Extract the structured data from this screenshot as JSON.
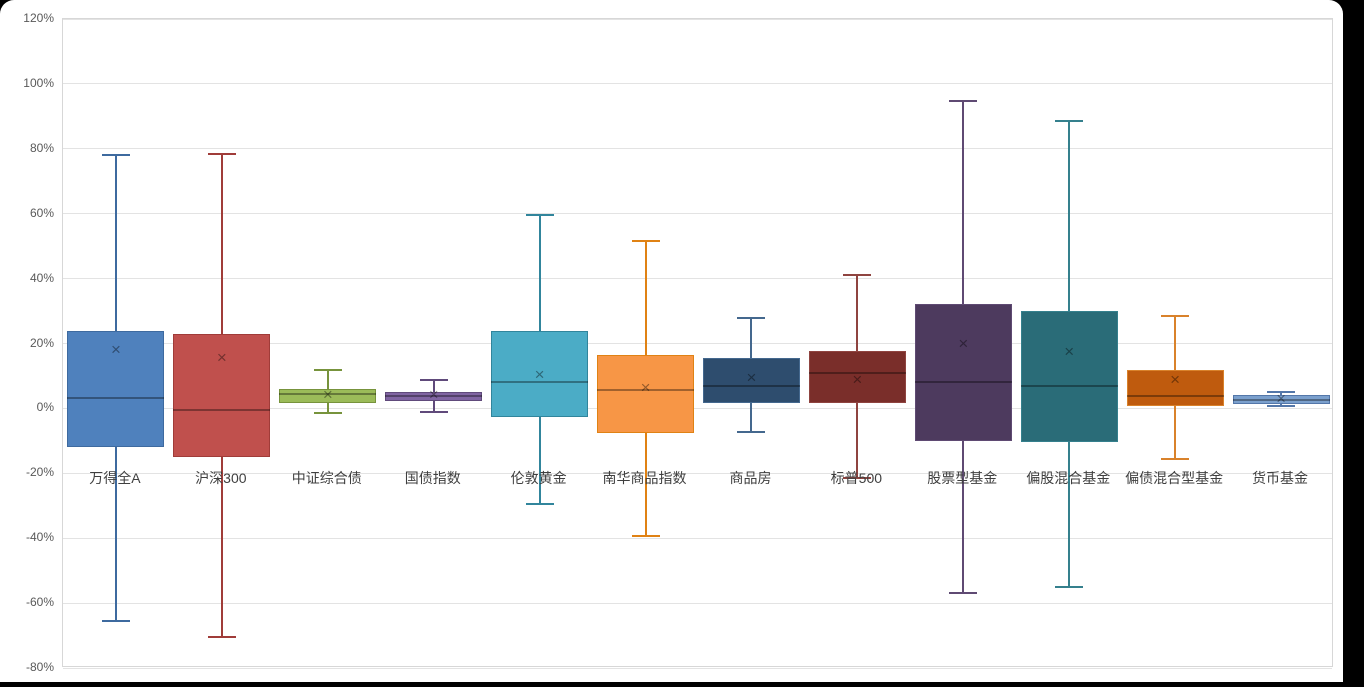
{
  "chart_data": {
    "type": "boxplot",
    "title": "",
    "xlabel": "",
    "ylabel": "",
    "grid": true,
    "legend": false,
    "y_axis": {
      "min": -80,
      "max": 120,
      "step": 20,
      "unit": "%",
      "tick_values": [
        120,
        100,
        80,
        60,
        40,
        20,
        0,
        -20,
        -40,
        -60,
        -80
      ],
      "tick_labels": [
        "120%",
        "100%",
        "80%",
        "60%",
        "40%",
        "20%",
        "0%",
        "-20%",
        "-40%",
        "-60%",
        "-80%"
      ]
    },
    "categories": [
      "万得全A",
      "沪深300",
      "中证综合债",
      "国债指数",
      "伦敦黄金",
      "南华商品指数",
      "商品房",
      "标普500",
      "股票型基金",
      "偏股混合基金",
      "偏债混合型基金",
      "货币基金"
    ],
    "series": [
      {
        "label": "万得全A",
        "whisker_low": -65.5,
        "q1": -12.0,
        "median": 3.2,
        "q3": 23.7,
        "whisker_high": 78.0,
        "mean": 18.1,
        "fill": "#4F81BD",
        "stroke": "#3E6A9F"
      },
      {
        "label": "沪深300",
        "whisker_low": -70.5,
        "q1": -15.0,
        "median": -0.5,
        "q3": 22.8,
        "whisker_high": 78.5,
        "mean": 15.6,
        "fill": "#C0504D",
        "stroke": "#A03C39"
      },
      {
        "label": "中证综合债",
        "whisker_low": -1.4,
        "q1": 1.6,
        "median": 4.4,
        "q3": 6.1,
        "whisker_high": 11.8,
        "mean": 4.1,
        "fill": "#9BBB59",
        "stroke": "#77933C"
      },
      {
        "label": "国债指数",
        "whisker_low": -1.2,
        "q1": 2.4,
        "median": 3.7,
        "q3": 5.1,
        "whisker_high": 8.8,
        "mean": 4.2,
        "fill": "#8064A2",
        "stroke": "#604A7B"
      },
      {
        "label": "伦敦黄金",
        "whisker_low": -29.5,
        "q1": -2.8,
        "median": 8.0,
        "q3": 23.7,
        "whisker_high": 59.5,
        "mean": 10.3,
        "fill": "#4BACC6",
        "stroke": "#31859C"
      },
      {
        "label": "南华商品指数",
        "whisker_low": -39.2,
        "q1": -7.5,
        "median": 5.8,
        "q3": 16.4,
        "whisker_high": 51.5,
        "mean": 6.3,
        "fill": "#F79646",
        "stroke": "#E08214"
      },
      {
        "label": "商品房",
        "whisker_low": -7.2,
        "q1": 1.8,
        "median": 7.0,
        "q3": 15.6,
        "whisker_high": 27.9,
        "mean": 9.4,
        "fill": "#2E4D6E",
        "stroke": "#44688E"
      },
      {
        "label": "标普500",
        "whisker_low": -21.4,
        "q1": 1.7,
        "median": 10.9,
        "q3": 17.7,
        "whisker_high": 41.0,
        "mean": 8.9,
        "fill": "#7A2E2A",
        "stroke": "#8F4440"
      },
      {
        "label": "股票型基金",
        "whisker_low": -57.0,
        "q1": -10.0,
        "median": 8.1,
        "q3": 32.3,
        "whisker_high": 94.7,
        "mean": 19.8,
        "fill": "#4D3A5E",
        "stroke": "#5F4A73"
      },
      {
        "label": "偏股混合基金",
        "whisker_low": -55.0,
        "q1": -10.3,
        "median": 6.8,
        "q3": 30.1,
        "whisker_high": 88.6,
        "mean": 17.3,
        "fill": "#2A6C78",
        "stroke": "#35808D"
      },
      {
        "label": "偏债混合型基金",
        "whisker_low": -15.5,
        "q1": 0.8,
        "median": 3.9,
        "q3": 11.7,
        "whisker_high": 28.4,
        "mean": 8.9,
        "fill": "#BF5B0E",
        "stroke": "#D9822B"
      },
      {
        "label": "货币基金",
        "whisker_low": 0.6,
        "q1": 1.3,
        "median": 2.6,
        "q3": 4.2,
        "whisker_high": 4.9,
        "mean": 2.8,
        "fill": "#7BA0CD",
        "stroke": "#5477A9"
      }
    ]
  }
}
